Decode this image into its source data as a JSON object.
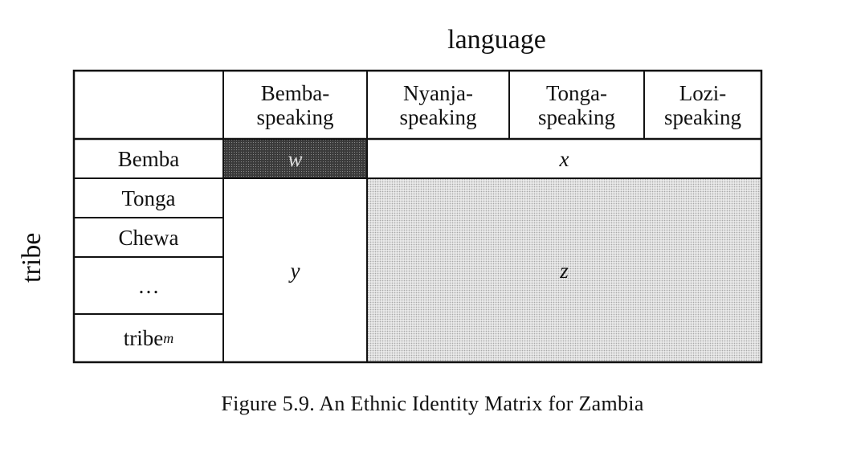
{
  "axes": {
    "column_axis_label": "language",
    "row_axis_label": "tribe"
  },
  "columns": [
    "Bemba-\nspeaking",
    "Nyanja-\nspeaking",
    "Tonga-\nspeaking",
    "Lozi-\nspeaking"
  ],
  "rows": {
    "r1": "Bemba",
    "r2": "Tonga",
    "r3": "Chewa",
    "r4": "…",
    "r5_base": "tribe",
    "r5_sub": "m"
  },
  "cells": {
    "w": "w",
    "x": "x",
    "y": "y",
    "z": "z"
  },
  "caption": "Figure 5.9. An Ethnic Identity Matrix for Zambia"
}
